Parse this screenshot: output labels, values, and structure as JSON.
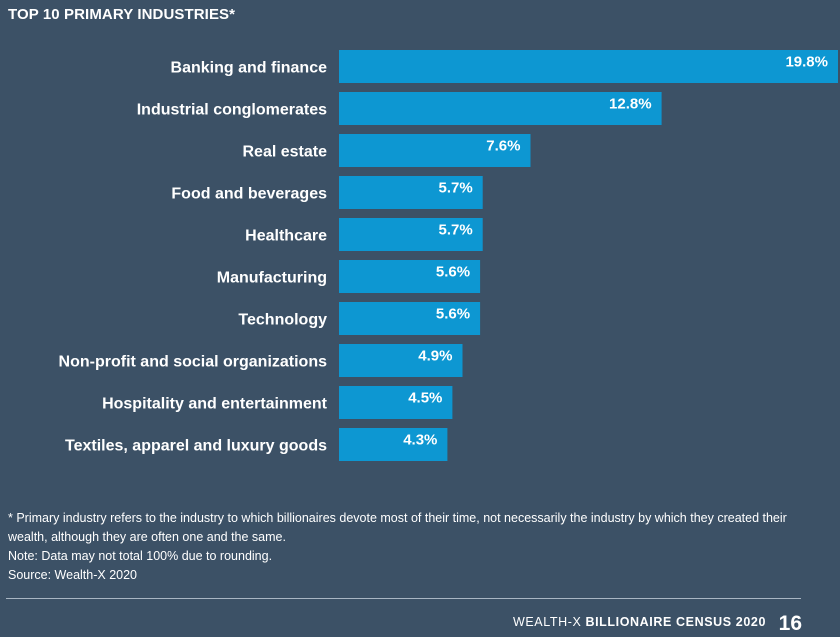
{
  "chart_data": {
    "type": "bar",
    "orientation": "horizontal",
    "title": "TOP 10 PRIMARY INDUSTRIES*",
    "categories": [
      "Banking and finance",
      "Industrial conglomerates",
      "Real estate",
      "Food and beverages",
      "Healthcare",
      "Manufacturing",
      "Technology",
      "Non-profit and social organizations",
      "Hospitality and entertainment",
      "Textiles, apparel and luxury goods"
    ],
    "values": [
      19.8,
      12.8,
      7.6,
      5.7,
      5.7,
      5.6,
      5.6,
      4.9,
      4.5,
      4.3
    ],
    "value_labels": [
      "19.8%",
      "12.8%",
      "7.6%",
      "5.7%",
      "5.7%",
      "5.6%",
      "5.6%",
      "4.9%",
      "4.5%",
      "4.3%"
    ],
    "bar_color": "#0d97d2",
    "background_color": "#3c5166",
    "xlim": [
      0,
      19.8
    ],
    "grid": false,
    "legend": "none"
  },
  "notes": {
    "footnote": "* Primary industry refers to the industry to which billionaires devote most of their time, not necessarily the industry by which they created their wealth, although they are often one and the same.",
    "note": "Note: Data may not total 100% due to rounding.",
    "source": "Source: Wealth-X 2020"
  },
  "footer": {
    "brand_prefix": "WEALTH-X ",
    "brand_title": "BILLIONAIRE CENSUS 2020",
    "page_number": "16"
  }
}
